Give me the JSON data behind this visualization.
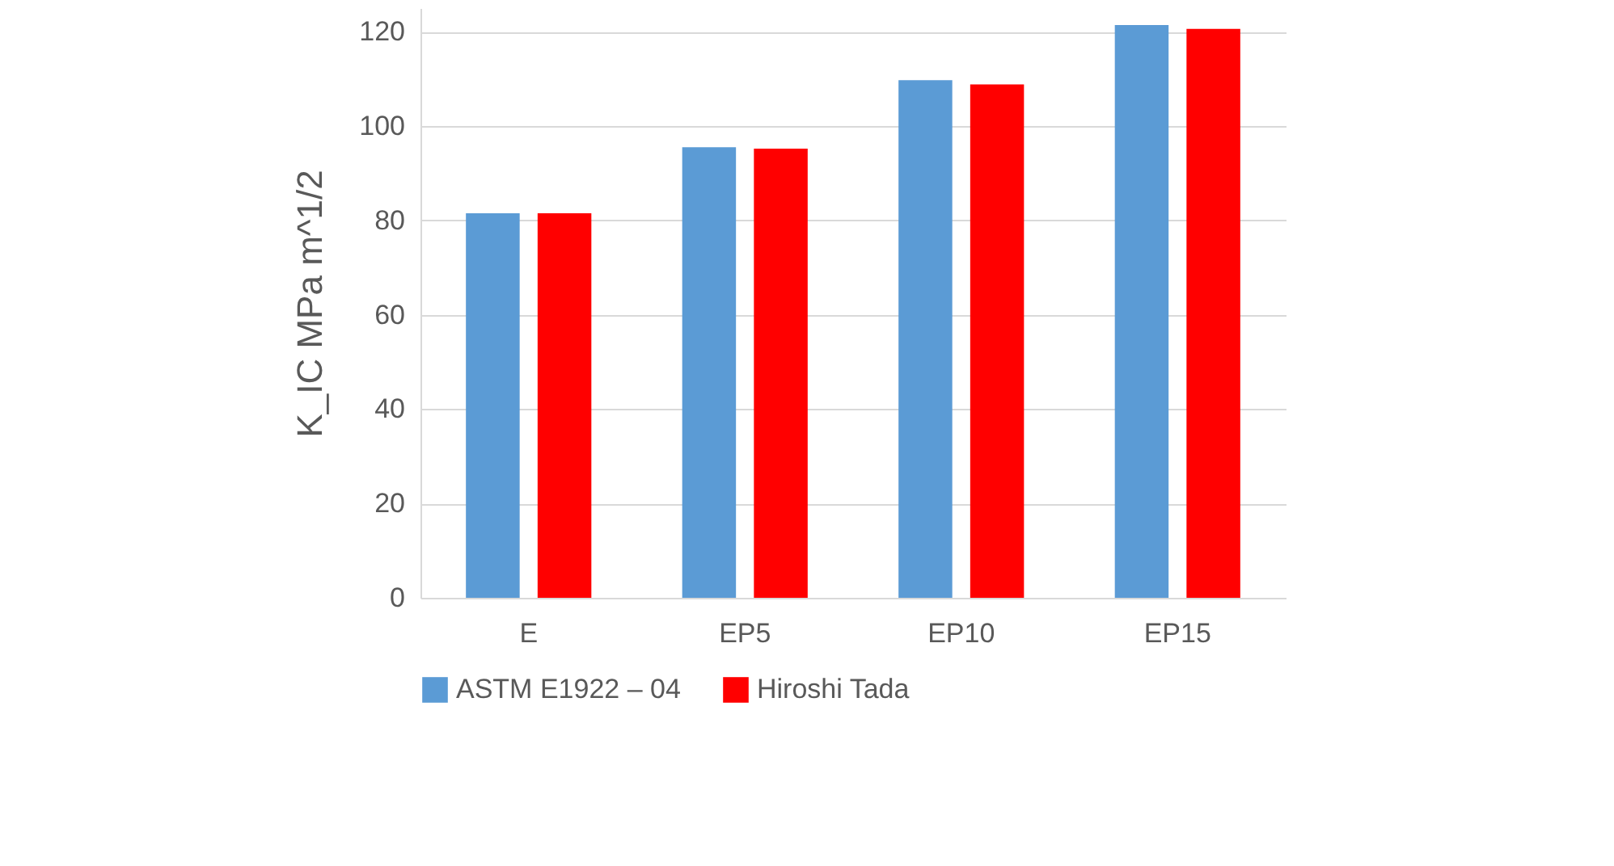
{
  "chart_data": {
    "type": "bar",
    "categories": [
      "E",
      "EP5",
      "EP10",
      "EP15"
    ],
    "series": [
      {
        "name": "ASTM E1922 – 04",
        "color": "#5b9bd5",
        "values": [
          81.5,
          95.5,
          109.7,
          121.4
        ]
      },
      {
        "name": "Hiroshi Tada",
        "color": "#ff0000",
        "values": [
          81.5,
          95.2,
          108.8,
          120.6
        ]
      }
    ],
    "ylabel": "K_IC  MPa m^1/2",
    "ylim": [
      0,
      125
    ],
    "yticks": [
      0,
      20,
      40,
      60,
      80,
      100,
      120
    ],
    "grid": "y",
    "legend": "bottom"
  }
}
